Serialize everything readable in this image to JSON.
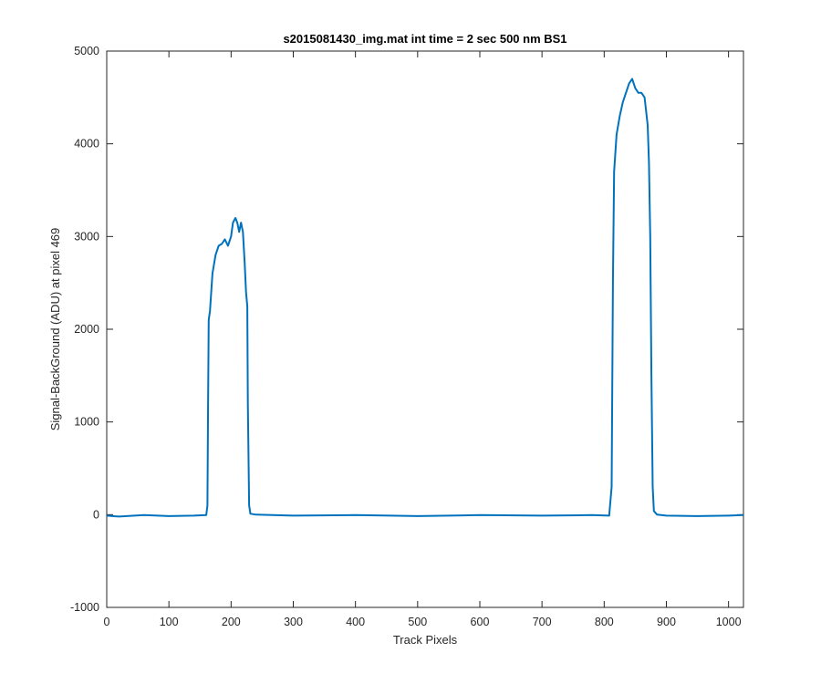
{
  "chart_data": {
    "type": "line",
    "title": "s2015081430_img.mat int time = 2 sec  500 nm BS1",
    "xlabel": "Track Pixels",
    "ylabel": "Signal-BackGround (ADU) at pixel 469",
    "xlim": [
      0,
      1024
    ],
    "ylim": [
      -1000,
      5000
    ],
    "xticks": [
      0,
      100,
      200,
      300,
      400,
      500,
      600,
      700,
      800,
      900,
      1000
    ],
    "yticks": [
      -1000,
      0,
      1000,
      2000,
      3000,
      4000,
      5000
    ],
    "xtick_labels": [
      "0",
      "100",
      "200",
      "300",
      "400",
      "500",
      "600",
      "700",
      "800",
      "900",
      "1000"
    ],
    "ytick_labels": [
      "-1000",
      "0",
      "1000",
      "2000",
      "3000",
      "4000",
      "5000"
    ],
    "grid": false,
    "series": [
      {
        "color": "#0072BD",
        "points": [
          [
            0,
            -10
          ],
          [
            20,
            -20
          ],
          [
            60,
            -5
          ],
          [
            100,
            -15
          ],
          [
            140,
            -10
          ],
          [
            160,
            -5
          ],
          [
            162,
            100
          ],
          [
            163,
            1200
          ],
          [
            164,
            2100
          ],
          [
            166,
            2200
          ],
          [
            170,
            2600
          ],
          [
            175,
            2800
          ],
          [
            180,
            2900
          ],
          [
            185,
            2920
          ],
          [
            190,
            2970
          ],
          [
            195,
            2900
          ],
          [
            200,
            3000
          ],
          [
            203,
            3150
          ],
          [
            207,
            3200
          ],
          [
            210,
            3150
          ],
          [
            213,
            3050
          ],
          [
            216,
            3150
          ],
          [
            219,
            3050
          ],
          [
            222,
            2700
          ],
          [
            224,
            2400
          ],
          [
            226,
            2250
          ],
          [
            227,
            1200
          ],
          [
            229,
            100
          ],
          [
            231,
            10
          ],
          [
            240,
            0
          ],
          [
            300,
            -10
          ],
          [
            400,
            -5
          ],
          [
            500,
            -15
          ],
          [
            600,
            -5
          ],
          [
            700,
            -10
          ],
          [
            780,
            -5
          ],
          [
            808,
            -10
          ],
          [
            812,
            300
          ],
          [
            814,
            2500
          ],
          [
            816,
            3700
          ],
          [
            820,
            4100
          ],
          [
            825,
            4300
          ],
          [
            830,
            4450
          ],
          [
            835,
            4550
          ],
          [
            840,
            4650
          ],
          [
            845,
            4700
          ],
          [
            850,
            4600
          ],
          [
            855,
            4550
          ],
          [
            860,
            4550
          ],
          [
            865,
            4500
          ],
          [
            870,
            4200
          ],
          [
            872,
            3800
          ],
          [
            874,
            3000
          ],
          [
            876,
            1500
          ],
          [
            878,
            300
          ],
          [
            880,
            40
          ],
          [
            885,
            0
          ],
          [
            900,
            -10
          ],
          [
            950,
            -15
          ],
          [
            1000,
            -10
          ],
          [
            1024,
            -5
          ]
        ]
      }
    ]
  }
}
